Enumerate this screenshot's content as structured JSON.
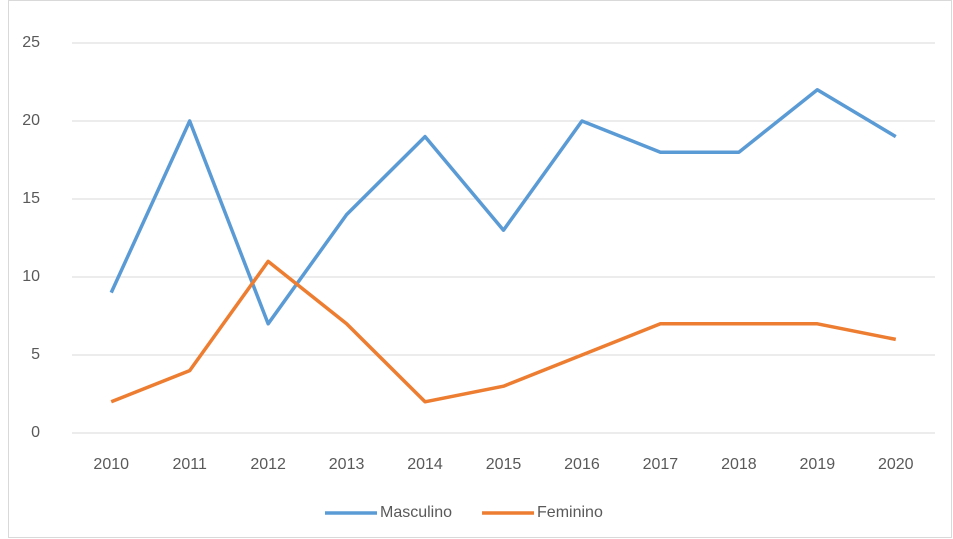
{
  "chart_data": {
    "type": "line",
    "categories": [
      "2010",
      "2011",
      "2012",
      "2013",
      "2014",
      "2015",
      "2016",
      "2017",
      "2018",
      "2019",
      "2020"
    ],
    "series": [
      {
        "name": "Masculino",
        "color": "#5b9bd5",
        "values": [
          9,
          20,
          7,
          14,
          19,
          13,
          20,
          18,
          18,
          22,
          19
        ]
      },
      {
        "name": "Feminino",
        "color": "#ed7d31",
        "values": [
          2,
          4,
          11,
          7,
          2,
          3,
          5,
          7,
          7,
          7,
          6
        ]
      }
    ],
    "ylim": [
      0,
      25
    ],
    "yticks": [
      0,
      5,
      10,
      15,
      20,
      25
    ],
    "grid": true,
    "legend": "bottom"
  }
}
